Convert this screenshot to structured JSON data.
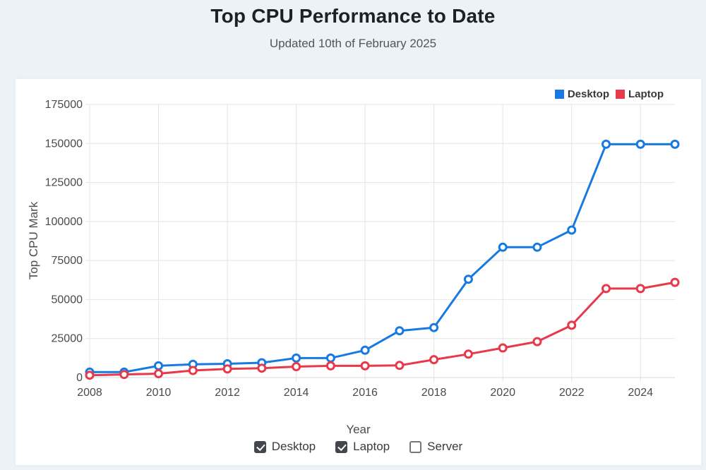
{
  "page": {
    "title": "Top CPU Performance to Date",
    "subtitle": "Updated 10th of February 2025"
  },
  "colors": {
    "desktop": "#1879e0",
    "laptop": "#e73949",
    "page_background": "#edf2f8",
    "panel_background": "#ffffff",
    "gridline": "#e4e4e4",
    "axis_line": "#d8d8d8",
    "tick_text": "#4a4a4a"
  },
  "legend": [
    {
      "label": "Desktop",
      "color": "#1879e0"
    },
    {
      "label": "Laptop",
      "color": "#e73949"
    }
  ],
  "controls": {
    "checkboxes": [
      {
        "label": "Desktop",
        "checked": true
      },
      {
        "label": "Laptop",
        "checked": true
      },
      {
        "label": "Server",
        "checked": false
      }
    ]
  },
  "chart_data": {
    "type": "line",
    "title": "Top CPU Performance to Date",
    "xlabel": "Year",
    "ylabel": "Top CPU Mark",
    "x": [
      2008,
      2009,
      2010,
      2011,
      2012,
      2013,
      2014,
      2015,
      2016,
      2017,
      2018,
      2019,
      2020,
      2021,
      2022,
      2023,
      2024,
      2025
    ],
    "x_tick_labels": [
      2008,
      2010,
      2012,
      2014,
      2016,
      2018,
      2020,
      2022,
      2024
    ],
    "ylim": [
      0,
      175000
    ],
    "y_ticks": [
      0,
      25000,
      50000,
      75000,
      100000,
      125000,
      150000,
      175000
    ],
    "grid": true,
    "legend_position": "top-right",
    "point_style": "open-circle",
    "series": [
      {
        "name": "Desktop",
        "color": "#1879e0",
        "values": [
          3500,
          3500,
          7500,
          8500,
          8800,
          9500,
          12500,
          12500,
          17500,
          30000,
          32000,
          63000,
          83500,
          83500,
          94500,
          149500,
          149500,
          149500
        ]
      },
      {
        "name": "Laptop",
        "color": "#e73949",
        "values": [
          1500,
          2000,
          2500,
          4500,
          5500,
          6000,
          7000,
          7500,
          7500,
          7800,
          11500,
          15000,
          19000,
          23000,
          33500,
          57000,
          57000,
          61000
        ]
      }
    ]
  }
}
